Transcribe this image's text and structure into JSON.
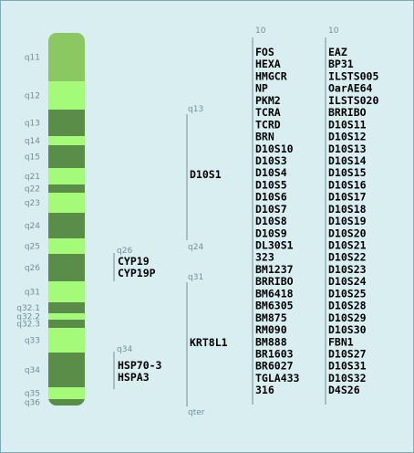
{
  "chromosome": {
    "bands": [
      {
        "label": "q11",
        "shade": "light"
      },
      {
        "label": "q12",
        "shade": "bright"
      },
      {
        "label": "q13",
        "shade": "dark"
      },
      {
        "label": "q14",
        "shade": "bright"
      },
      {
        "label": "q15",
        "shade": "dark"
      },
      {
        "label": "q21",
        "shade": "bright"
      },
      {
        "label": "q22",
        "shade": "dark"
      },
      {
        "label": "q23",
        "shade": "bright"
      },
      {
        "label": "q24",
        "shade": "dark"
      },
      {
        "label": "q25",
        "shade": "bright"
      },
      {
        "label": "q26",
        "shade": "dark"
      },
      {
        "label": "q31",
        "shade": "bright"
      },
      {
        "label": "q32.1",
        "shade": "dark"
      },
      {
        "label": "q32.2",
        "shade": "bright"
      },
      {
        "label": "q32.3",
        "shade": "dark"
      },
      {
        "label": "q33",
        "shade": "bright"
      },
      {
        "label": "q34",
        "shade": "dark"
      },
      {
        "label": "q35",
        "shade": "bright"
      },
      {
        "label": "q36",
        "shade": "dark"
      }
    ],
    "colors": {
      "light": "#8bc862",
      "bright": "#a4fb78",
      "dark": "#5a8d47"
    }
  },
  "loci_near": [
    {
      "band": "q26",
      "genes": [
        "CYP19",
        "CYP19P"
      ]
    },
    {
      "band": "q34",
      "genes": [
        "HSP70-3",
        "HSPA3"
      ]
    }
  ],
  "middle": {
    "groups": [
      {
        "top": "q13",
        "bottom": "q24",
        "label": "D10S1"
      },
      {
        "top": "q31",
        "bottom": "qter",
        "label": "KRT8L1"
      }
    ]
  },
  "columns": [
    {
      "header": "10",
      "genes": [
        "FOS",
        "HEXA",
        "HMGCR",
        "NP",
        "PKM2",
        "TCRA",
        "TCRD",
        "BRN",
        "D10S10",
        "D10S3",
        "D10S4",
        "D10S5",
        "D10S6",
        "D10S7",
        "D10S8",
        "D10S9",
        "DL30S1",
        "323",
        "BM1237",
        "BRRIBO",
        "BM6418",
        "BM6305",
        "BM875",
        "RM090",
        "BM888",
        "BR1603",
        "BR6027",
        "TGLA433",
        "316"
      ]
    },
    {
      "header": "10",
      "genes": [
        "EAZ",
        "BP31",
        "ILSTS005",
        "OarAE64",
        "ILSTS020",
        "BRRIBO",
        "D10S11",
        "D10S12",
        "D10S13",
        "D10S14",
        "D10S15",
        "D10S16",
        "D10S17",
        "D10S18",
        "D10S19",
        "D10S20",
        "D10S21",
        "D10S22",
        "D10S23",
        "D10S24",
        "D10S25",
        "D10S28",
        "D10S29",
        "D10S30",
        "FBN1",
        "D10S27",
        "D10S31",
        "D10S32",
        "D4S26"
      ]
    }
  ]
}
